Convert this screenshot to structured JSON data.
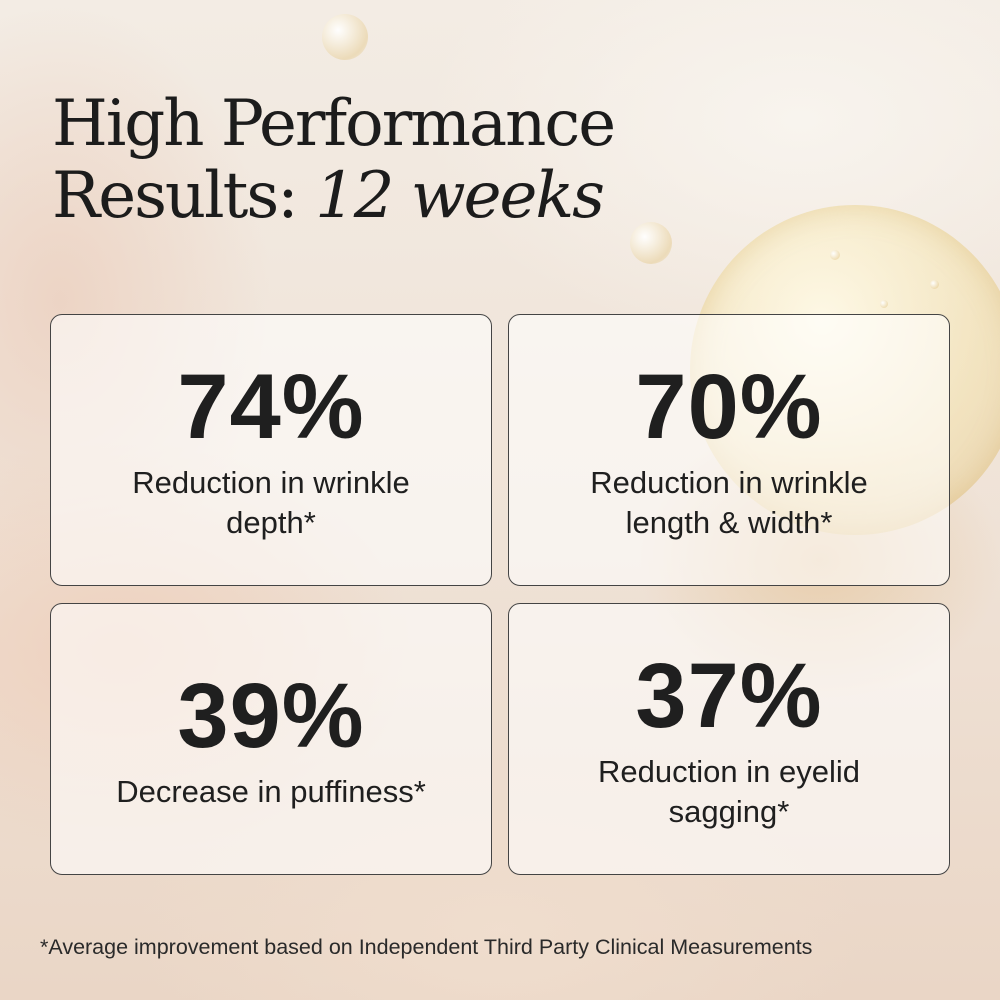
{
  "headline": {
    "line1": "High Performance",
    "line2_prefix": "Results: ",
    "line2_italic": "12 weeks"
  },
  "results": [
    {
      "value": "74%",
      "description": "Reduction in wrinkle depth*"
    },
    {
      "value": "70%",
      "description": "Reduction in wrinkle length & width*"
    },
    {
      "value": "39%",
      "description": "Decrease in puffiness*"
    },
    {
      "value": "37%",
      "description": "Reduction in eyelid sagging*"
    }
  ],
  "footnote": "*Average improvement based on Independent Third Party Clinical Measurements"
}
